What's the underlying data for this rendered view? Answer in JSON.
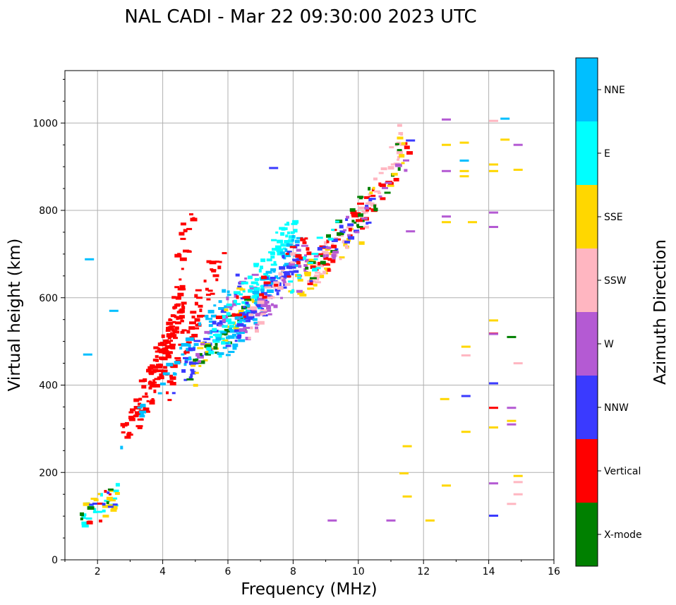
{
  "chart_data": {
    "type": "scatter",
    "title": "NAL CADI - Mar 22 09:30:00 2023 UTC",
    "xlabel": "Frequency (MHz)",
    "ylabel": "Virtual height (km)",
    "xlim": [
      1,
      16
    ],
    "ylim": [
      0,
      1120
    ],
    "xticks": [
      2,
      4,
      6,
      8,
      10,
      12,
      14,
      16
    ],
    "yticks": [
      0,
      200,
      400,
      600,
      800,
      1000
    ],
    "grid": true,
    "colorbar": {
      "label": "Azimuth Direction",
      "categories": [
        {
          "name": "X-mode",
          "color": "#008000"
        },
        {
          "name": "Vertical",
          "color": "#ff0000"
        },
        {
          "name": "NNW",
          "color": "#3a3aff"
        },
        {
          "name": "W",
          "color": "#b45ad3"
        },
        {
          "name": "SSW",
          "color": "#ffb6c1"
        },
        {
          "name": "SSE",
          "color": "#ffd700"
        },
        {
          "name": "E",
          "color": "#00ffff"
        },
        {
          "name": "NNE",
          "color": "#00bfff"
        }
      ]
    },
    "echo_segments": [
      {
        "f_start": 2.7,
        "f_end": 3.6,
        "h_start": 265,
        "h_end": 380,
        "dir": "Vertical",
        "n": 30
      },
      {
        "f_start": 2.8,
        "f_end": 3.5,
        "h_start": 270,
        "h_end": 370,
        "dir": "NNE",
        "n": 6
      },
      {
        "f_start": 3.5,
        "f_end": 4.5,
        "h_start": 380,
        "h_end": 560,
        "dir": "Vertical",
        "n": 130
      },
      {
        "f_start": 4.4,
        "f_end": 4.8,
        "h_start": 560,
        "h_end": 780,
        "dir": "Vertical",
        "n": 30
      },
      {
        "f_start": 4.2,
        "f_end": 5.8,
        "h_start": 390,
        "h_end": 700,
        "dir": "Vertical",
        "n": 55
      },
      {
        "f_start": 4.0,
        "f_end": 6.0,
        "h_start": 380,
        "h_end": 600,
        "dir": "NNE",
        "n": 40
      },
      {
        "f_start": 4.5,
        "f_end": 6.5,
        "h_start": 400,
        "h_end": 640,
        "dir": "NNW",
        "n": 35
      },
      {
        "f_start": 4.8,
        "f_end": 6.8,
        "h_start": 420,
        "h_end": 620,
        "dir": "SSE",
        "n": 30
      },
      {
        "f_start": 4.8,
        "f_end": 7.0,
        "h_start": 420,
        "h_end": 600,
        "dir": "X-mode",
        "n": 25
      },
      {
        "f_start": 5.0,
        "f_end": 7.0,
        "h_start": 450,
        "h_end": 680,
        "dir": "W",
        "n": 25
      },
      {
        "f_start": 5.5,
        "f_end": 8.0,
        "h_start": 480,
        "h_end": 760,
        "dir": "E",
        "n": 90
      },
      {
        "f_start": 5.8,
        "f_end": 8.2,
        "h_start": 480,
        "h_end": 720,
        "dir": "NNE",
        "n": 80
      },
      {
        "f_start": 6.0,
        "f_end": 8.2,
        "h_start": 500,
        "h_end": 700,
        "dir": "NNW",
        "n": 60
      },
      {
        "f_start": 6.5,
        "f_end": 8.5,
        "h_start": 520,
        "h_end": 700,
        "dir": "W",
        "n": 40
      },
      {
        "f_start": 6.5,
        "f_end": 8.0,
        "h_start": 520,
        "h_end": 680,
        "dir": "SSW",
        "n": 25
      },
      {
        "f_start": 5.5,
        "f_end": 8.5,
        "h_start": 520,
        "h_end": 720,
        "dir": "Vertical",
        "n": 25
      },
      {
        "f_start": 8.0,
        "f_end": 10.0,
        "h_start": 620,
        "h_end": 740,
        "dir": "SSE",
        "n": 35
      },
      {
        "f_start": 8.5,
        "f_end": 10.2,
        "h_start": 640,
        "h_end": 800,
        "dir": "SSW",
        "n": 30
      },
      {
        "f_start": 8.5,
        "f_end": 10.5,
        "h_start": 650,
        "h_end": 840,
        "dir": "Vertical",
        "n": 30
      },
      {
        "f_start": 8.5,
        "f_end": 10.5,
        "h_start": 650,
        "h_end": 820,
        "dir": "NNW",
        "n": 18
      },
      {
        "f_start": 8.5,
        "f_end": 10.5,
        "h_start": 660,
        "h_end": 830,
        "dir": "X-mode",
        "n": 18
      },
      {
        "f_start": 8.0,
        "f_end": 9.5,
        "h_start": 620,
        "h_end": 780,
        "dir": "E",
        "n": 15
      },
      {
        "f_start": 8.0,
        "f_end": 10.0,
        "h_start": 620,
        "h_end": 780,
        "dir": "W",
        "n": 12
      },
      {
        "f_start": 10.0,
        "f_end": 11.5,
        "h_start": 760,
        "h_end": 990,
        "dir": "SSW",
        "n": 25
      },
      {
        "f_start": 10.0,
        "f_end": 11.5,
        "h_start": 760,
        "h_end": 950,
        "dir": "Vertical",
        "n": 15
      },
      {
        "f_start": 10.0,
        "f_end": 11.5,
        "h_start": 780,
        "h_end": 950,
        "dir": "X-mode",
        "n": 10
      },
      {
        "f_start": 10.0,
        "f_end": 11.5,
        "h_start": 770,
        "h_end": 920,
        "dir": "W",
        "n": 8
      },
      {
        "f_start": 10.0,
        "f_end": 11.5,
        "h_start": 780,
        "h_end": 960,
        "dir": "SSE",
        "n": 8
      },
      {
        "f_start": 1.45,
        "f_end": 2.5,
        "h_start": 90,
        "h_end": 150,
        "dir": "E",
        "n": 18
      },
      {
        "f_start": 1.45,
        "f_end": 2.5,
        "h_start": 90,
        "h_end": 150,
        "dir": "SSE",
        "n": 14
      },
      {
        "f_start": 1.45,
        "f_end": 2.5,
        "h_start": 90,
        "h_end": 150,
        "dir": "X-mode",
        "n": 6
      },
      {
        "f_start": 1.45,
        "f_end": 2.5,
        "h_start": 90,
        "h_end": 150,
        "dir": "Vertical",
        "n": 6
      },
      {
        "f_start": 1.45,
        "f_end": 2.5,
        "h_start": 100,
        "h_end": 145,
        "dir": "NNW",
        "n": 6
      }
    ],
    "isolated_points": [
      {
        "f": 1.75,
        "h": 688,
        "dir": "NNE"
      },
      {
        "f": 2.5,
        "h": 570,
        "dir": "NNE"
      },
      {
        "f": 1.7,
        "h": 470,
        "dir": "NNE"
      },
      {
        "f": 7.4,
        "h": 897,
        "dir": "NNW"
      },
      {
        "f": 9.2,
        "h": 90,
        "dir": "W"
      },
      {
        "f": 11.0,
        "h": 90,
        "dir": "W"
      },
      {
        "f": 12.2,
        "h": 90,
        "dir": "SSE"
      },
      {
        "f": 11.6,
        "h": 960,
        "dir": "NNW"
      },
      {
        "f": 11.6,
        "h": 752,
        "dir": "W"
      },
      {
        "f": 11.5,
        "h": 260,
        "dir": "SSE"
      },
      {
        "f": 11.5,
        "h": 145,
        "dir": "SSE"
      },
      {
        "f": 11.4,
        "h": 198,
        "dir": "SSE"
      },
      {
        "f": 12.7,
        "h": 1008,
        "dir": "W"
      },
      {
        "f": 12.7,
        "h": 950,
        "dir": "SSE"
      },
      {
        "f": 12.7,
        "h": 890,
        "dir": "W"
      },
      {
        "f": 12.7,
        "h": 786,
        "dir": "W"
      },
      {
        "f": 12.7,
        "h": 773,
        "dir": "SSE"
      },
      {
        "f": 12.65,
        "h": 368,
        "dir": "SSE"
      },
      {
        "f": 12.7,
        "h": 170,
        "dir": "SSE"
      },
      {
        "f": 13.25,
        "h": 955,
        "dir": "SSE"
      },
      {
        "f": 13.25,
        "h": 914,
        "dir": "NNE"
      },
      {
        "f": 13.25,
        "h": 890,
        "dir": "SSE"
      },
      {
        "f": 13.25,
        "h": 878,
        "dir": "SSE"
      },
      {
        "f": 13.5,
        "h": 773,
        "dir": "SSE"
      },
      {
        "f": 13.3,
        "h": 488,
        "dir": "SSE"
      },
      {
        "f": 13.3,
        "h": 468,
        "dir": "SSW"
      },
      {
        "f": 13.3,
        "h": 375,
        "dir": "NNW"
      },
      {
        "f": 13.3,
        "h": 293,
        "dir": "SSE"
      },
      {
        "f": 14.15,
        "h": 1005,
        "dir": "SSW"
      },
      {
        "f": 14.5,
        "h": 1010,
        "dir": "NNE"
      },
      {
        "f": 14.15,
        "h": 905,
        "dir": "SSE"
      },
      {
        "f": 14.15,
        "h": 890,
        "dir": "SSE"
      },
      {
        "f": 14.5,
        "h": 962,
        "dir": "SSE"
      },
      {
        "f": 14.9,
        "h": 950,
        "dir": "W"
      },
      {
        "f": 14.9,
        "h": 893,
        "dir": "SSE"
      },
      {
        "f": 14.15,
        "h": 795,
        "dir": "W"
      },
      {
        "f": 14.15,
        "h": 762,
        "dir": "W"
      },
      {
        "f": 14.15,
        "h": 548,
        "dir": "SSE"
      },
      {
        "f": 14.15,
        "h": 518,
        "dir": "Vertical"
      },
      {
        "f": 14.15,
        "h": 517,
        "dir": "W"
      },
      {
        "f": 14.7,
        "h": 510,
        "dir": "X-mode"
      },
      {
        "f": 14.9,
        "h": 450,
        "dir": "SSW"
      },
      {
        "f": 14.15,
        "h": 404,
        "dir": "NNW"
      },
      {
        "f": 14.15,
        "h": 348,
        "dir": "Vertical"
      },
      {
        "f": 14.7,
        "h": 348,
        "dir": "W"
      },
      {
        "f": 14.15,
        "h": 303,
        "dir": "SSE"
      },
      {
        "f": 14.7,
        "h": 318,
        "dir": "SSE"
      },
      {
        "f": 14.7,
        "h": 310,
        "dir": "W"
      },
      {
        "f": 14.9,
        "h": 192,
        "dir": "SSE"
      },
      {
        "f": 14.9,
        "h": 178,
        "dir": "SSW"
      },
      {
        "f": 14.15,
        "h": 175,
        "dir": "W"
      },
      {
        "f": 14.9,
        "h": 150,
        "dir": "SSW"
      },
      {
        "f": 14.7,
        "h": 128,
        "dir": "SSW"
      },
      {
        "f": 14.15,
        "h": 101,
        "dir": "NNW"
      }
    ]
  }
}
